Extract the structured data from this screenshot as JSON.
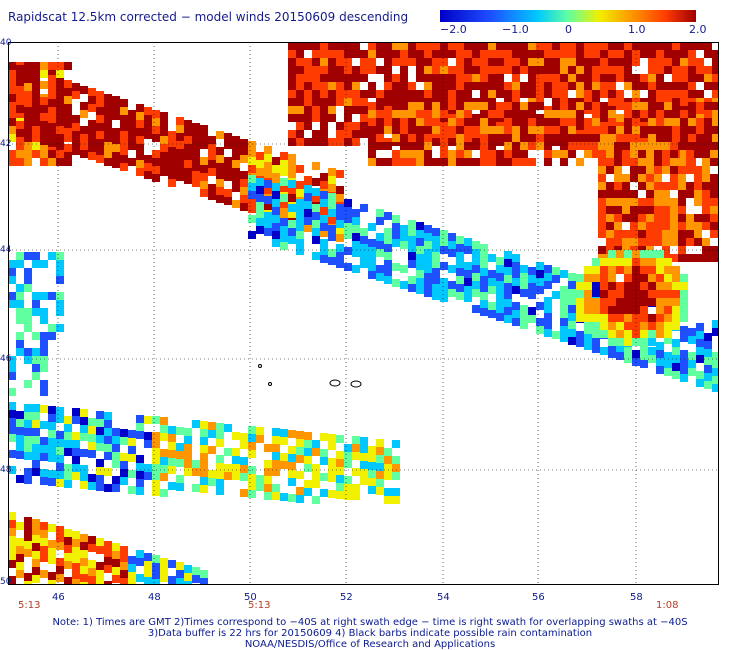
{
  "title": "Rapidscat 12.5km corrected − model winds 20150609 descending",
  "colorbar": {
    "labels": [
      "−2.0",
      "−1.0",
      "0",
      "1.0",
      "2.0"
    ],
    "colors": [
      "#0000c8",
      "#1e50ff",
      "#00c8ff",
      "#60ffa0",
      "#f0f000",
      "#ff9600",
      "#ff3c00",
      "#a00000"
    ]
  },
  "lat_labels": [
    "40",
    "42",
    "44",
    "46",
    "48",
    "50"
  ],
  "lon_labels": [
    "46",
    "48",
    "50",
    "52",
    "54",
    "56",
    "58"
  ],
  "times": [
    {
      "label": "5:13"
    },
    {
      "label": "5:13"
    },
    {
      "label": "1:08"
    }
  ],
  "notes": [
    "Note: 1) Times are GMT 2)Times correspond to −40S at right swath edge − time is right swath for overlapping swaths at −40S",
    "3)Data buffer is 22 hrs for 20150609 4) Black barbs indicate possible rain contamination",
    "NOAA/NESDIS/Office of Research and Applications"
  ],
  "colors": {
    "text": "#0b1b8f",
    "time": "#b43c28",
    "grid": "#000000"
  }
}
